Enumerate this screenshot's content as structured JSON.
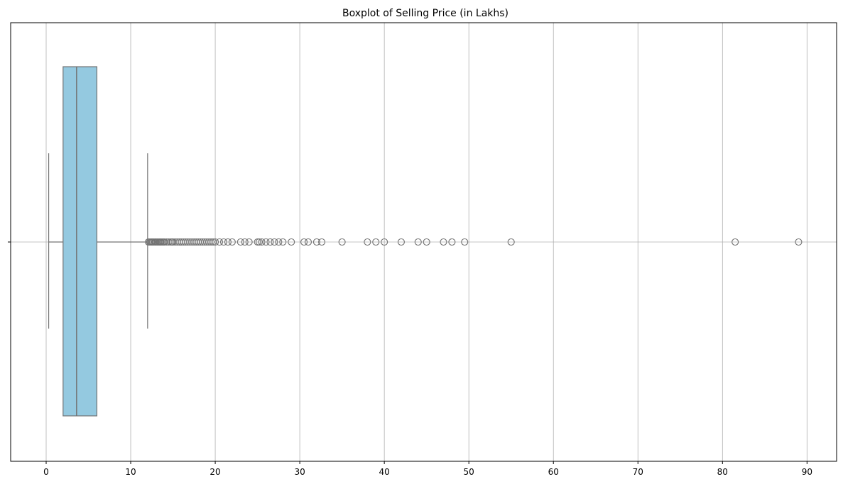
{
  "chart_data": {
    "type": "boxplot",
    "title": "Boxplot of Selling Price (in Lakhs)",
    "xlabel": "",
    "ylabel": "",
    "xlim": [
      -4.2,
      93.5
    ],
    "xticks": [
      0,
      10,
      20,
      30,
      40,
      50,
      60,
      70,
      80,
      90
    ],
    "grid": true,
    "orientation": "horizontal",
    "box": {
      "whisker_low": 0.3,
      "q1": 2.0,
      "median": 3.6,
      "q3": 6.0,
      "whisker_high": 12.0
    },
    "outliers": [
      12.1,
      12.25,
      12.4,
      12.5,
      12.6,
      12.75,
      12.9,
      13.0,
      13.15,
      13.25,
      13.4,
      13.5,
      13.6,
      13.75,
      13.9,
      14.0,
      14.25,
      14.5,
      14.75,
      14.9,
      15.0,
      15.25,
      15.5,
      15.75,
      16.0,
      16.25,
      16.5,
      16.75,
      17.0,
      17.25,
      17.5,
      17.75,
      18.0,
      18.25,
      18.5,
      18.75,
      19.0,
      19.25,
      19.5,
      19.75,
      20.0,
      20.5,
      21.0,
      21.5,
      22.0,
      23.0,
      23.5,
      24.0,
      25.0,
      25.2,
      25.5,
      26.0,
      26.5,
      27.0,
      27.5,
      28.0,
      29.0,
      30.5,
      31.0,
      32.0,
      32.6,
      35.0,
      38.0,
      39.0,
      40.0,
      42.0,
      44.0,
      45.0,
      47.0,
      48.0,
      49.5,
      55.0,
      81.5,
      89.0
    ],
    "colors": {
      "box_fill": "#94c9e0",
      "line": "#737373",
      "grid": "#b0b0b0"
    }
  }
}
